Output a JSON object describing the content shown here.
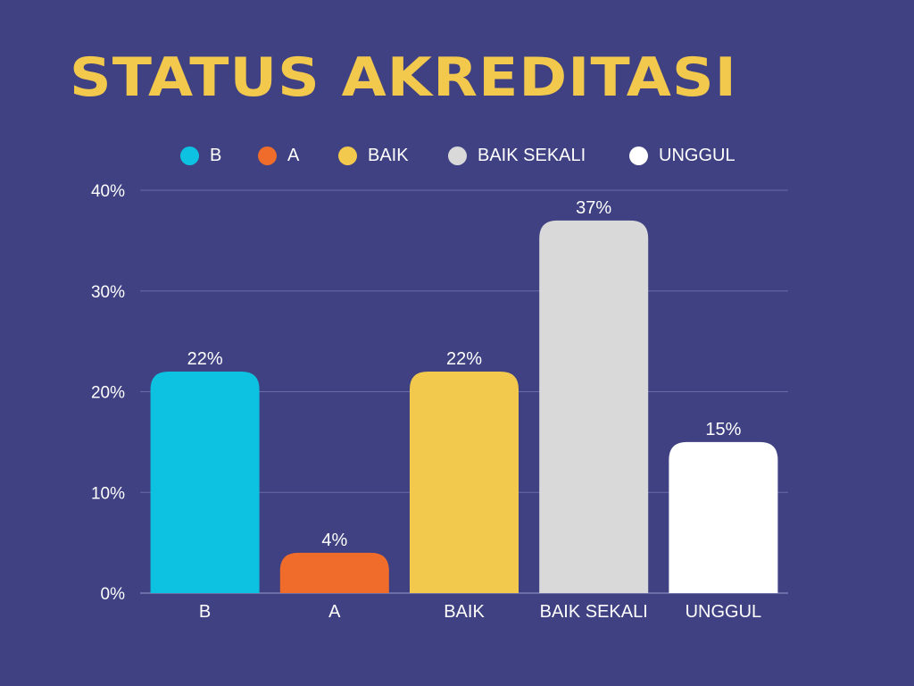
{
  "chart_data": {
    "type": "bar",
    "title": "STATUS AKREDITASI",
    "categories": [
      "B",
      "A",
      "BAIK",
      "BAIK SEKALI",
      "UNGGUL"
    ],
    "values": [
      22,
      4,
      22,
      37,
      15
    ],
    "value_labels": [
      "22%",
      "4%",
      "22%",
      "37%",
      "15%"
    ],
    "colors": [
      "#0dc2e0",
      "#ef6c2a",
      "#f2c94c",
      "#d9d9d9",
      "#ffffff"
    ],
    "ylim": [
      0,
      40
    ],
    "yticks": [
      0,
      10,
      20,
      30,
      40
    ],
    "ytick_labels": [
      "0%",
      "10%",
      "20%",
      "30%",
      "40%"
    ],
    "legend": [
      "B",
      "A",
      "BAIK",
      "BAIK SEKALI",
      "UNGGUL"
    ],
    "legend_position": "top",
    "grid": true,
    "xlabel": "",
    "ylabel": ""
  },
  "theme": {
    "background": "#3f4182",
    "title_color": "#f2c94c",
    "text_color": "#ffffff",
    "grid_color": "#6a6ca8"
  }
}
